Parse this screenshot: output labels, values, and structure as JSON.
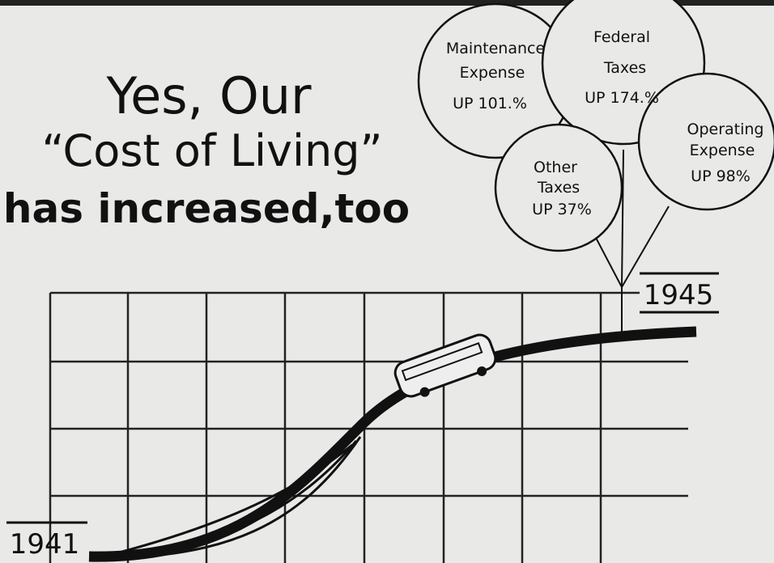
{
  "title": {
    "lines": [
      "Yes, Our",
      "“Cost of Living”",
      "has increased,too"
    ]
  },
  "balloons": [
    {
      "lines": [
        "Maintenance",
        "Expense",
        "UP 101.%"
      ]
    },
    {
      "lines": [
        "Federal",
        "Taxes",
        "UP 174.%"
      ]
    },
    {
      "lines": [
        "Operating",
        "Expense",
        "UP 98%"
      ]
    },
    {
      "lines": [
        "Other",
        "Taxes",
        "UP 37%"
      ]
    }
  ],
  "years": {
    "start": "1941",
    "end": "1945"
  }
}
